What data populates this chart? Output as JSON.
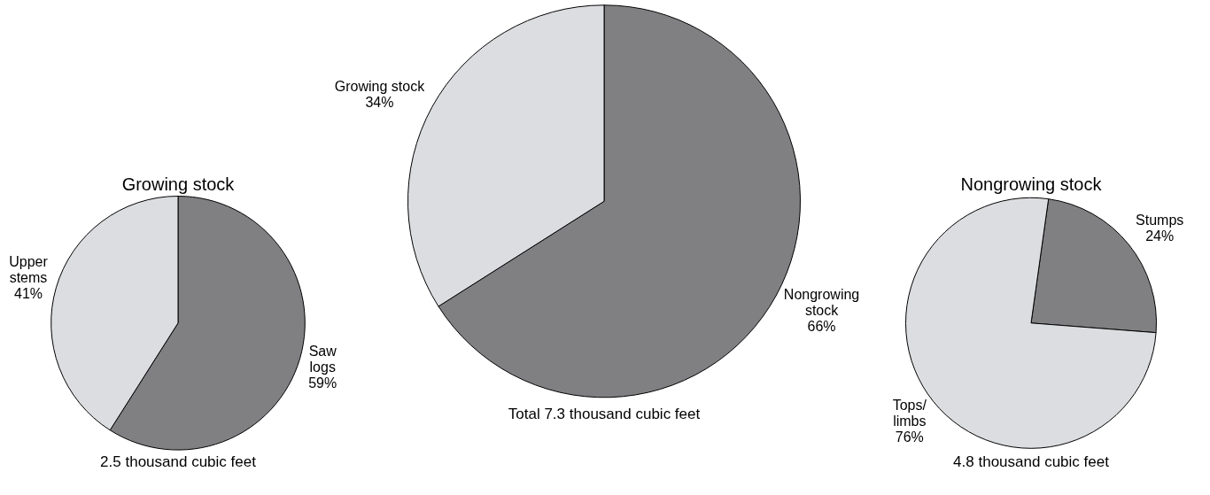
{
  "chart_data": [
    {
      "type": "pie",
      "title": "Growing stock",
      "categories": [
        "Saw logs",
        "Upper stems"
      ],
      "values": [
        59,
        41
      ],
      "value_labels": [
        "59%",
        "41%"
      ],
      "colors": [
        "#808083",
        "#dcdde0"
      ],
      "annotations": [
        "2.5 thousand cubic feet"
      ]
    },
    {
      "type": "pie",
      "categories": [
        "Nongrowing stock",
        "Growing stock"
      ],
      "values": [
        66,
        34
      ],
      "value_labels": [
        "66%",
        "34%"
      ],
      "colors": [
        "#808083",
        "#dcdde0"
      ],
      "annotations": [
        "Total 7.3 thousand cubic feet"
      ]
    },
    {
      "type": "pie",
      "title": "Nongrowing stock",
      "categories": [
        "Stumps",
        "Tops/limbs"
      ],
      "values": [
        24,
        76
      ],
      "value_labels": [
        "24%",
        "76%"
      ],
      "colors": [
        "#808083",
        "#dcdde0"
      ],
      "annotations": [
        "4.8 thousand cubic feet"
      ]
    }
  ]
}
